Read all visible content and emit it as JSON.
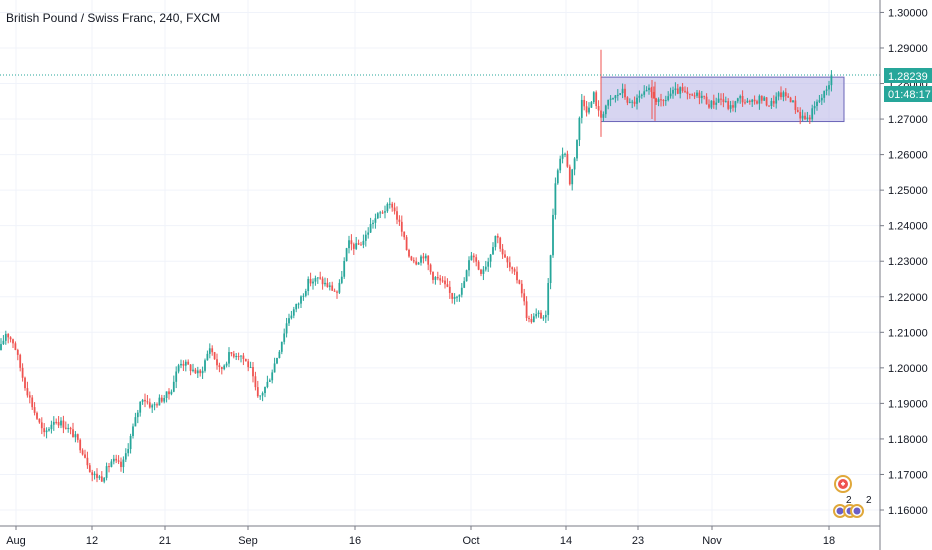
{
  "header": {
    "title": "British Pound / Swiss Franc, 240, FXCM"
  },
  "badges": {
    "last_price": "1.28239",
    "countdown": "01:48:17"
  },
  "events": {
    "count_a": "2",
    "count_b": "2"
  },
  "colors": {
    "up": "#26a69a",
    "down": "#ef5350",
    "badge": "#26a69a",
    "range_fill": "#b7b3e5",
    "range_stroke": "#6a64b8",
    "grid": "#f0f3fa",
    "axis_border": "#787b86"
  },
  "chart_data": {
    "type": "candlestick",
    "title": "British Pound / Swiss Franc, 240, FXCM",
    "y_ticks": [
      "1.30000",
      "1.29000",
      "1.28000",
      "1.27000",
      "1.26000",
      "1.25000",
      "1.24000",
      "1.23000",
      "1.22000",
      "1.21000",
      "1.20000",
      "1.19000",
      "1.18000",
      "1.17000",
      "1.16000"
    ],
    "x_ticks": [
      "Aug",
      "12",
      "21",
      "Sep",
      "16",
      "Oct",
      "14",
      "23",
      "Nov",
      "18"
    ],
    "ylim": [
      1.1555,
      1.3035
    ],
    "grid": true,
    "last_price": 1.28239,
    "range_box": {
      "low": 1.2693,
      "high": 1.2818,
      "from": "Oct 17",
      "to": "Nov 18"
    },
    "path": [
      [
        0,
        1.205
      ],
      [
        6,
        1.21
      ],
      [
        14,
        1.207
      ],
      [
        24,
        1.196
      ],
      [
        34,
        1.188
      ],
      [
        44,
        1.181
      ],
      [
        54,
        1.1855
      ],
      [
        64,
        1.184
      ],
      [
        74,
        1.181
      ],
      [
        84,
        1.176
      ],
      [
        92,
        1.17
      ],
      [
        102,
        1.169
      ],
      [
        112,
        1.174
      ],
      [
        122,
        1.172
      ],
      [
        132,
        1.182
      ],
      [
        142,
        1.192
      ],
      [
        152,
        1.189
      ],
      [
        160,
        1.191
      ],
      [
        170,
        1.193
      ],
      [
        180,
        1.202
      ],
      [
        190,
        1.2
      ],
      [
        200,
        1.198
      ],
      [
        210,
        1.206
      ],
      [
        220,
        1.199
      ],
      [
        230,
        1.204
      ],
      [
        240,
        1.204
      ],
      [
        250,
        1.2
      ],
      [
        258,
        1.191
      ],
      [
        268,
        1.196
      ],
      [
        278,
        1.204
      ],
      [
        288,
        1.214
      ],
      [
        298,
        1.218
      ],
      [
        308,
        1.224
      ],
      [
        318,
        1.225
      ],
      [
        328,
        1.223
      ],
      [
        338,
        1.221
      ],
      [
        348,
        1.235
      ],
      [
        356,
        1.234
      ],
      [
        364,
        1.236
      ],
      [
        372,
        1.241
      ],
      [
        382,
        1.244
      ],
      [
        392,
        1.246
      ],
      [
        400,
        1.24
      ],
      [
        408,
        1.232
      ],
      [
        416,
        1.23
      ],
      [
        424,
        1.232
      ],
      [
        432,
        1.226
      ],
      [
        442,
        1.224
      ],
      [
        452,
        1.22
      ],
      [
        462,
        1.222
      ],
      [
        472,
        1.233
      ],
      [
        480,
        1.227
      ],
      [
        488,
        1.23
      ],
      [
        496,
        1.238
      ],
      [
        504,
        1.231
      ],
      [
        512,
        1.227
      ],
      [
        520,
        1.224
      ],
      [
        528,
        1.213
      ],
      [
        538,
        1.215
      ],
      [
        546,
        1.214
      ],
      [
        550,
        1.23
      ],
      [
        556,
        1.255
      ],
      [
        564,
        1.262
      ],
      [
        570,
        1.252
      ],
      [
        576,
        1.262
      ],
      [
        582,
        1.276
      ],
      [
        588,
        1.272
      ],
      [
        594,
        1.277
      ],
      [
        600,
        1.27
      ],
      [
        606,
        1.274
      ],
      [
        614,
        1.276
      ],
      [
        622,
        1.278
      ],
      [
        630,
        1.274
      ],
      [
        640,
        1.276
      ],
      [
        650,
        1.278
      ],
      [
        660,
        1.274
      ],
      [
        670,
        1.277
      ],
      [
        680,
        1.278
      ],
      [
        690,
        1.276
      ],
      [
        700,
        1.277
      ],
      [
        710,
        1.274
      ],
      [
        720,
        1.276
      ],
      [
        730,
        1.273
      ],
      [
        740,
        1.276
      ],
      [
        750,
        1.274
      ],
      [
        760,
        1.276
      ],
      [
        770,
        1.274
      ],
      [
        780,
        1.277
      ],
      [
        790,
        1.276
      ],
      [
        800,
        1.271
      ],
      [
        808,
        1.27
      ],
      [
        816,
        1.274
      ],
      [
        824,
        1.277
      ],
      [
        832,
        1.2824
      ]
    ]
  }
}
